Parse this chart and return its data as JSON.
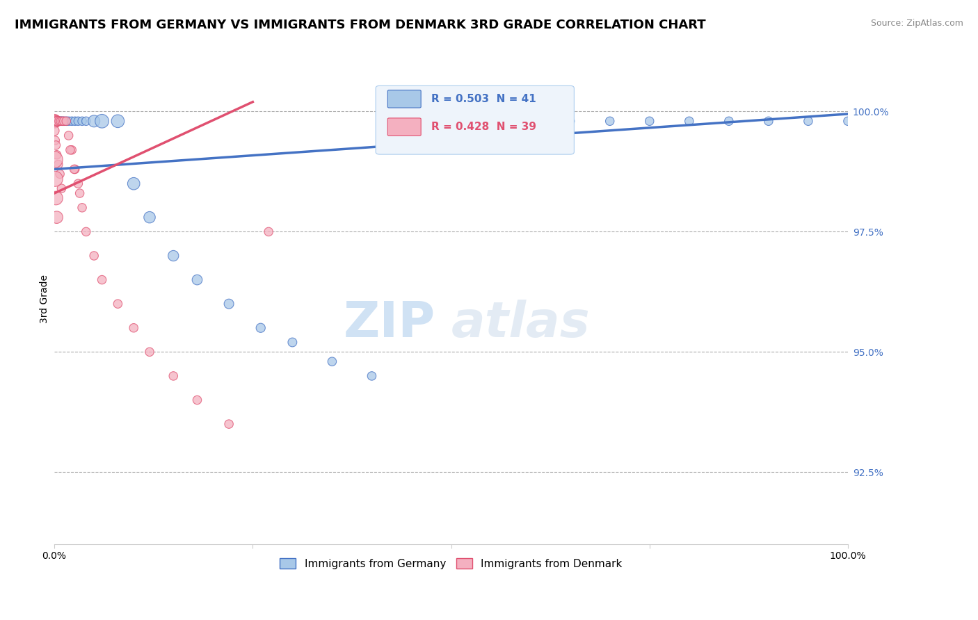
{
  "title": "IMMIGRANTS FROM GERMANY VS IMMIGRANTS FROM DENMARK 3RD GRADE CORRELATION CHART",
  "source_text": "Source: ZipAtlas.com",
  "ylabel": "3rd Grade",
  "right_yticks": [
    92.5,
    95.0,
    97.5,
    100.0
  ],
  "right_yticklabels": [
    "92.5%",
    "95.0%",
    "97.5%",
    "100.0%"
  ],
  "xlim": [
    0.0,
    1.0
  ],
  "ylim": [
    91.0,
    101.2
  ],
  "germany_color": "#a8c8e8",
  "denmark_color": "#f4b0c0",
  "germany_line_color": "#4472c4",
  "denmark_line_color": "#e05070",
  "R_germany": 0.503,
  "N_germany": 41,
  "R_denmark": 0.428,
  "N_denmark": 39,
  "watermark_zip": "ZIP",
  "watermark_atlas": "atlas",
  "title_fontsize": 13,
  "label_fontsize": 10,
  "tick_fontsize": 10,
  "germany_x": [
    0.0,
    0.001,
    0.002,
    0.003,
    0.004,
    0.005,
    0.007,
    0.008,
    0.01,
    0.012,
    0.015,
    0.018,
    0.022,
    0.026,
    0.03,
    0.035,
    0.04,
    0.05,
    0.06,
    0.08,
    0.1,
    0.12,
    0.15,
    0.18,
    0.22,
    0.26,
    0.3,
    0.35,
    0.4,
    0.5,
    0.6,
    0.7,
    0.75,
    0.8,
    0.85,
    0.9,
    0.95,
    1.0,
    0.55,
    0.65,
    0.45
  ],
  "germany_y": [
    99.8,
    99.8,
    99.8,
    99.8,
    99.8,
    99.8,
    99.8,
    99.8,
    99.8,
    99.8,
    99.8,
    99.8,
    99.8,
    99.8,
    99.8,
    99.8,
    99.8,
    99.8,
    99.8,
    99.8,
    98.5,
    97.8,
    97.0,
    96.5,
    96.0,
    95.5,
    95.2,
    94.8,
    94.5,
    99.8,
    99.8,
    99.8,
    99.8,
    99.8,
    99.8,
    99.8,
    99.8,
    99.8,
    99.8,
    99.8,
    99.8
  ],
  "germany_sizes": [
    120,
    80,
    80,
    80,
    80,
    80,
    80,
    80,
    80,
    80,
    80,
    80,
    80,
    80,
    80,
    80,
    80,
    150,
    200,
    180,
    160,
    140,
    120,
    110,
    100,
    90,
    85,
    80,
    80,
    80,
    80,
    80,
    80,
    80,
    80,
    80,
    80,
    80,
    80,
    80,
    80
  ],
  "denmark_x": [
    0.0,
    0.001,
    0.002,
    0.003,
    0.004,
    0.006,
    0.008,
    0.01,
    0.012,
    0.015,
    0.018,
    0.022,
    0.026,
    0.03,
    0.035,
    0.04,
    0.05,
    0.06,
    0.08,
    0.1,
    0.12,
    0.15,
    0.18,
    0.22,
    0.27,
    0.02,
    0.025,
    0.032,
    0.0,
    0.001,
    0.002,
    0.003,
    0.005,
    0.007,
    0.009,
    0.0,
    0.001,
    0.002,
    0.003
  ],
  "denmark_y": [
    99.8,
    99.8,
    99.8,
    99.8,
    99.8,
    99.8,
    99.8,
    99.8,
    99.8,
    99.8,
    99.5,
    99.2,
    98.8,
    98.5,
    98.0,
    97.5,
    97.0,
    96.5,
    96.0,
    95.5,
    95.0,
    94.5,
    94.0,
    93.5,
    97.5,
    99.2,
    98.8,
    98.3,
    99.6,
    99.4,
    99.3,
    99.1,
    98.9,
    98.7,
    98.4,
    99.0,
    98.6,
    98.2,
    97.8
  ],
  "denmark_sizes": [
    200,
    150,
    120,
    100,
    90,
    80,
    80,
    80,
    80,
    80,
    80,
    80,
    80,
    80,
    80,
    80,
    80,
    80,
    80,
    80,
    80,
    80,
    80,
    80,
    80,
    80,
    80,
    80,
    100,
    80,
    80,
    80,
    80,
    80,
    80,
    300,
    250,
    200,
    160
  ],
  "g_trend_x": [
    0.0,
    1.0
  ],
  "g_trend_y": [
    98.8,
    99.95
  ],
  "d_trend_x": [
    0.0,
    0.25
  ],
  "d_trend_y": [
    98.5,
    99.8
  ]
}
